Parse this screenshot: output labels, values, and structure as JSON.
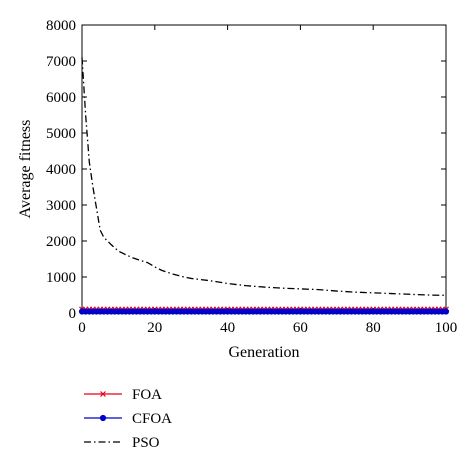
{
  "chart_data": {
    "type": "line",
    "xlabel": "Generation",
    "ylabel": "Average fitness",
    "xlim": [
      0,
      100
    ],
    "ylim": [
      0,
      8000
    ],
    "x_ticks": [
      0,
      20,
      40,
      60,
      80,
      100
    ],
    "y_ticks": [
      0,
      1000,
      2000,
      3000,
      4000,
      5000,
      6000,
      7000,
      8000
    ],
    "grid": false,
    "legend_position": "below",
    "series": [
      {
        "name": "FOA",
        "color": "#e8001c",
        "line": "solid",
        "marker": "x",
        "x": [
          0,
          1,
          2,
          3,
          4,
          5,
          6,
          7,
          8,
          9,
          10,
          11,
          12,
          13,
          14,
          15,
          16,
          17,
          18,
          19,
          20,
          21,
          22,
          23,
          24,
          25,
          26,
          27,
          28,
          29,
          30,
          31,
          32,
          33,
          34,
          35,
          36,
          37,
          38,
          39,
          40,
          41,
          42,
          43,
          44,
          45,
          46,
          47,
          48,
          49,
          50,
          51,
          52,
          53,
          54,
          55,
          56,
          57,
          58,
          59,
          60,
          61,
          62,
          63,
          64,
          65,
          66,
          67,
          68,
          69,
          70,
          71,
          72,
          73,
          74,
          75,
          76,
          77,
          78,
          79,
          80,
          81,
          82,
          83,
          84,
          85,
          86,
          87,
          88,
          89,
          90,
          91,
          92,
          93,
          94,
          95,
          96,
          97,
          98,
          99,
          100
        ],
        "values": [
          100,
          100,
          100,
          100,
          100,
          100,
          100,
          100,
          100,
          100,
          100,
          100,
          100,
          100,
          100,
          100,
          100,
          100,
          100,
          100,
          100,
          100,
          100,
          100,
          100,
          100,
          100,
          100,
          100,
          100,
          100,
          100,
          100,
          100,
          100,
          100,
          100,
          100,
          100,
          100,
          100,
          100,
          100,
          100,
          100,
          100,
          100,
          100,
          100,
          100,
          100,
          100,
          100,
          100,
          100,
          100,
          100,
          100,
          100,
          100,
          100,
          100,
          100,
          100,
          100,
          100,
          100,
          100,
          100,
          100,
          100,
          100,
          100,
          100,
          100,
          100,
          100,
          100,
          100,
          100,
          100,
          100,
          100,
          100,
          100,
          100,
          100,
          100,
          100,
          100,
          100,
          100,
          100,
          100,
          100,
          100,
          100,
          100,
          100,
          100,
          100
        ]
      },
      {
        "name": "CFOA",
        "color": "#0000cc",
        "line": "solid",
        "marker": "dot",
        "x": [
          0,
          1,
          2,
          3,
          4,
          5,
          6,
          7,
          8,
          9,
          10,
          11,
          12,
          13,
          14,
          15,
          16,
          17,
          18,
          19,
          20,
          21,
          22,
          23,
          24,
          25,
          26,
          27,
          28,
          29,
          30,
          31,
          32,
          33,
          34,
          35,
          36,
          37,
          38,
          39,
          40,
          41,
          42,
          43,
          44,
          45,
          46,
          47,
          48,
          49,
          50,
          51,
          52,
          53,
          54,
          55,
          56,
          57,
          58,
          59,
          60,
          61,
          62,
          63,
          64,
          65,
          66,
          67,
          68,
          69,
          70,
          71,
          72,
          73,
          74,
          75,
          76,
          77,
          78,
          79,
          80,
          81,
          82,
          83,
          84,
          85,
          86,
          87,
          88,
          89,
          90,
          91,
          92,
          93,
          94,
          95,
          96,
          97,
          98,
          99,
          100
        ],
        "values": [
          40,
          40,
          40,
          40,
          40,
          40,
          40,
          40,
          40,
          40,
          40,
          40,
          40,
          40,
          40,
          40,
          40,
          40,
          40,
          40,
          40,
          40,
          40,
          40,
          40,
          40,
          40,
          40,
          40,
          40,
          40,
          40,
          40,
          40,
          40,
          40,
          40,
          40,
          40,
          40,
          40,
          40,
          40,
          40,
          40,
          40,
          40,
          40,
          40,
          40,
          40,
          40,
          40,
          40,
          40,
          40,
          40,
          40,
          40,
          40,
          40,
          40,
          40,
          40,
          40,
          40,
          40,
          40,
          40,
          40,
          40,
          40,
          40,
          40,
          40,
          40,
          40,
          40,
          40,
          40,
          40,
          40,
          40,
          40,
          40,
          40,
          40,
          40,
          40,
          40,
          40,
          40,
          40,
          40,
          40,
          40,
          40,
          40,
          40,
          40,
          40
        ]
      },
      {
        "name": "PSO",
        "color": "#000000",
        "line": "dashdot",
        "marker": "none",
        "x": [
          0,
          1,
          2,
          3,
          4,
          5,
          6,
          8,
          10,
          12,
          14,
          16,
          18,
          20,
          22,
          25,
          28,
          30,
          35,
          40,
          45,
          50,
          55,
          60,
          65,
          70,
          75,
          80,
          85,
          90,
          95,
          100
        ],
        "values": [
          7100,
          5500,
          4200,
          3500,
          2900,
          2300,
          2100,
          1900,
          1720,
          1620,
          1530,
          1460,
          1400,
          1280,
          1180,
          1080,
          1000,
          960,
          900,
          820,
          760,
          720,
          690,
          670,
          650,
          610,
          580,
          560,
          540,
          520,
          500,
          490
        ]
      }
    ]
  }
}
